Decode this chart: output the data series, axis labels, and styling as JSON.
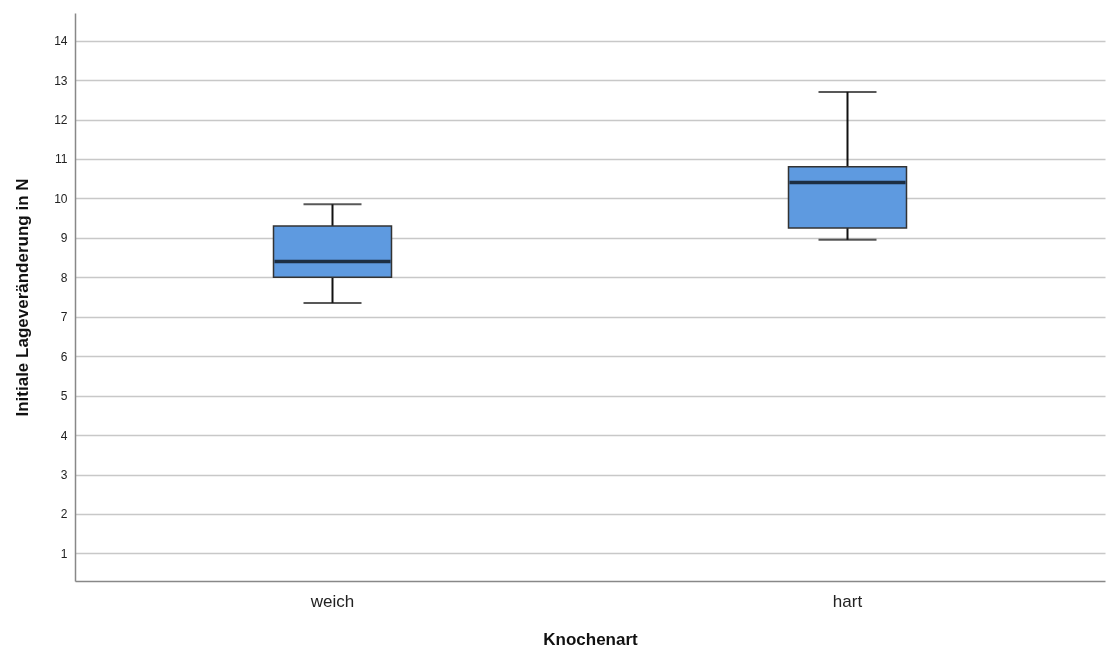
{
  "chart_data": {
    "type": "box",
    "xlabel": "Knochenart",
    "ylabel": "Initiale Lageveränderung in N",
    "categories": [
      "weich",
      "hart"
    ],
    "series": [
      {
        "color": "#5e9ae0",
        "boxes": [
          {
            "low": 7.35,
            "q1": 8.0,
            "median": 8.4,
            "q3": 9.3,
            "high": 9.85
          },
          {
            "low": 8.95,
            "q1": 9.25,
            "median": 10.4,
            "q3": 10.8,
            "high": 12.7
          }
        ]
      }
    ],
    "ylim": [
      0.3,
      14.7
    ],
    "yticks": [
      1,
      2,
      3,
      4,
      5,
      6,
      7,
      8,
      9,
      10,
      11,
      12,
      13,
      14
    ],
    "grid": "y"
  }
}
